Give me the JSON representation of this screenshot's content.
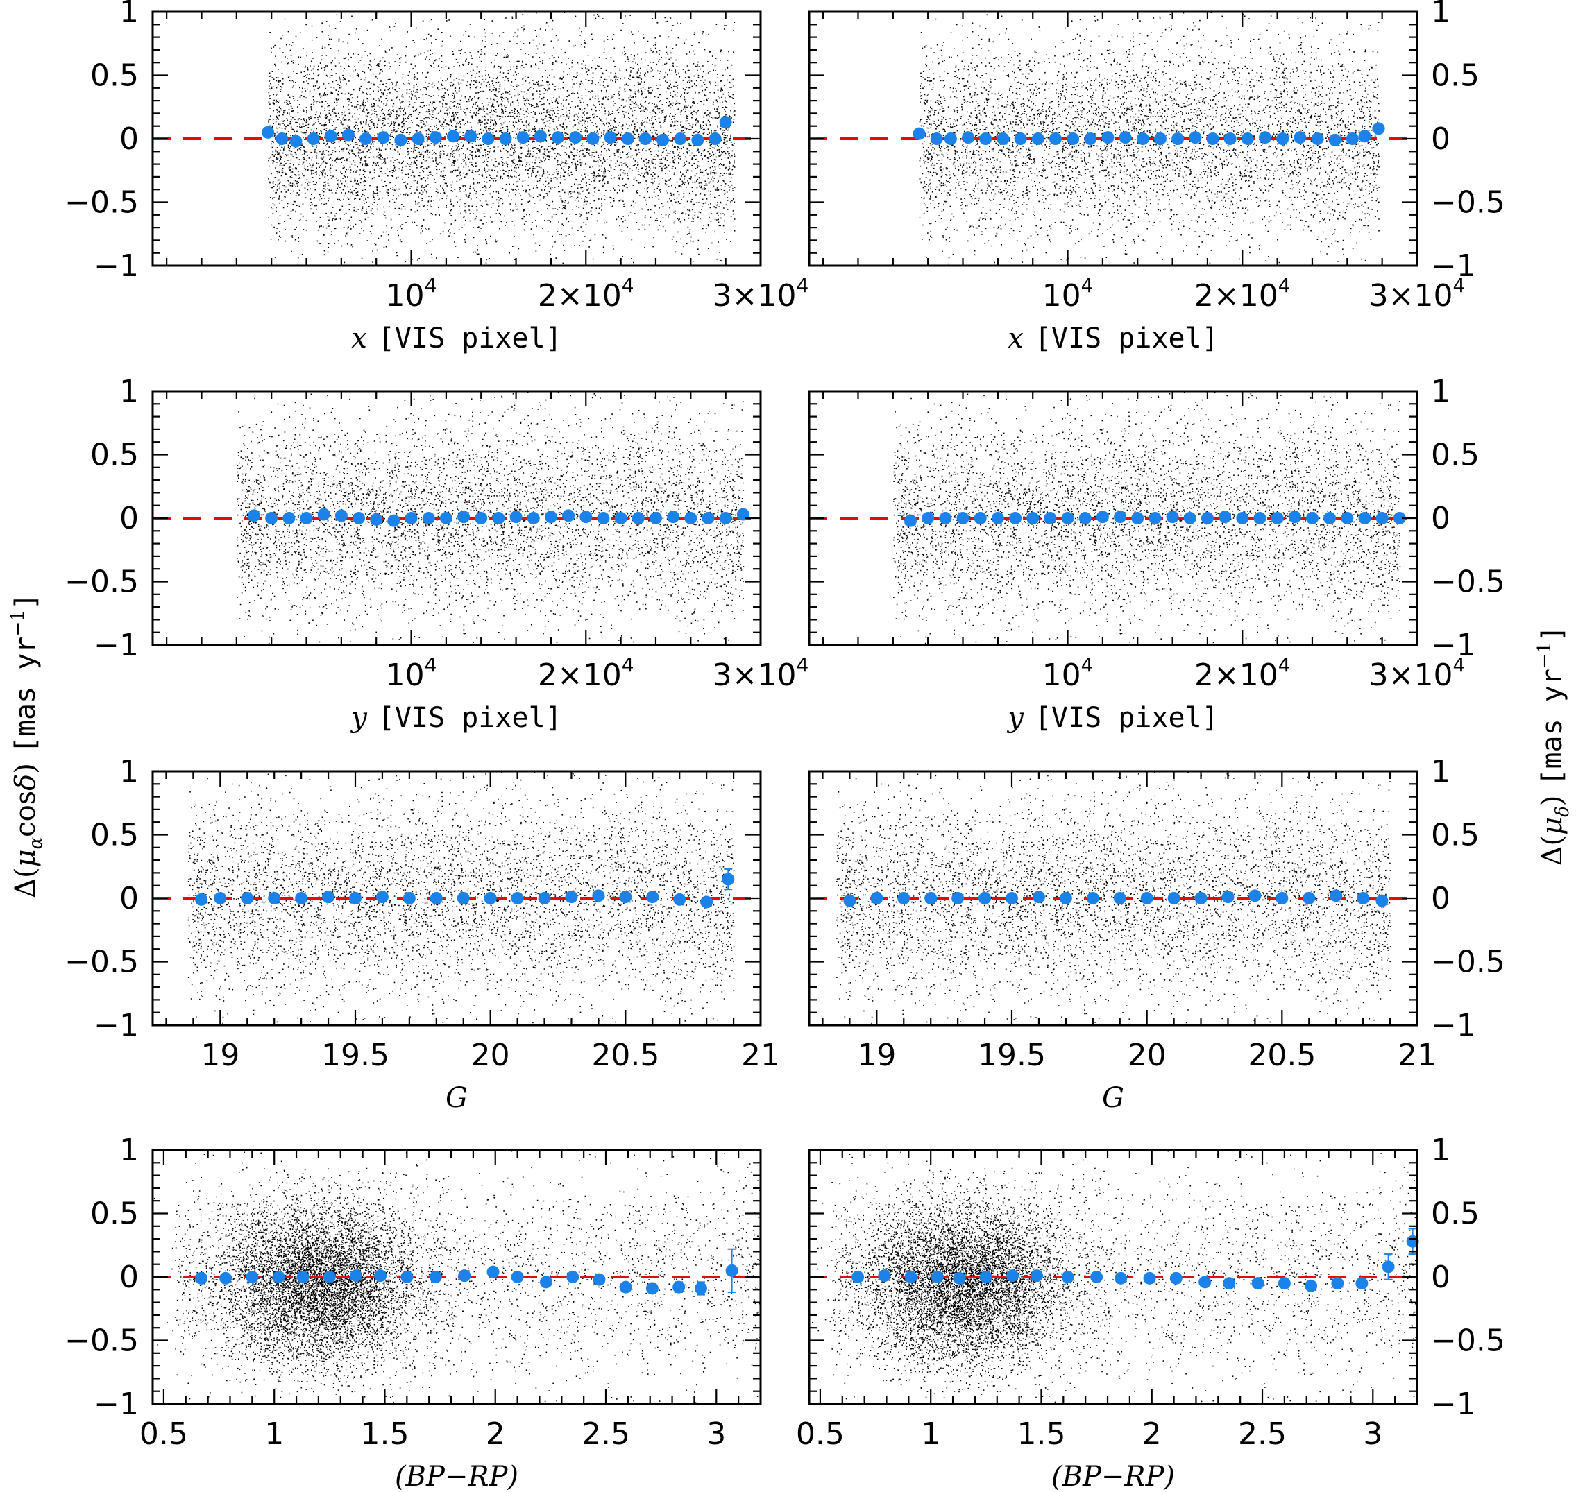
{
  "figure": {
    "ylabel_left": {
      "delta": "Δ(",
      "mu": "μ",
      "sub": "α",
      "cos": "cos",
      "delta_sym": "δ",
      "close": ")",
      "unit": "[mas yr",
      "exp": "−1",
      "unit_close": "]"
    },
    "ylabel_right": {
      "delta": "Δ(",
      "mu": "μ",
      "sub": "δ",
      "close": ")",
      "unit": "[mas yr",
      "exp": "−1",
      "unit_close": "]"
    },
    "colors": {
      "stars": "#000000",
      "bins": "#1a82e8",
      "zero_line": "#e30b0b"
    }
  },
  "chart_data": [
    {
      "type": "scatter",
      "panel": "row1-left",
      "x_quantity": "x",
      "xlabel_var": "x",
      "xlabel_unit": "[VIS pixel]",
      "x_ticks": [
        "10",
        "2×10",
        "3×10"
      ],
      "x_tick_exponent": "4",
      "x_tick_values": [
        10000,
        20000,
        30000
      ],
      "xlim": [
        -4800,
        30000
      ],
      "ylim": [
        -1,
        1
      ],
      "y_ticks": [
        "1",
        "0.5",
        "0",
        "−0.5",
        "−1"
      ],
      "ytick_side": "left",
      "x_range_points": [
        1800,
        28500
      ],
      "binned_x": [
        1800,
        2600,
        3400,
        4400,
        5400,
        6400,
        7400,
        8400,
        9400,
        10400,
        11400,
        12400,
        13400,
        14400,
        15400,
        16400,
        17400,
        18400,
        19400,
        20400,
        21400,
        22400,
        23400,
        24400,
        25400,
        26400,
        27400,
        28000
      ],
      "binned_y": [
        0.05,
        0.0,
        -0.02,
        0.0,
        0.02,
        0.03,
        0.0,
        0.01,
        -0.01,
        0.0,
        0.01,
        0.02,
        0.02,
        0.0,
        0.0,
        0.01,
        0.02,
        0.01,
        0.01,
        0.0,
        0.01,
        0.0,
        0.0,
        -0.01,
        0.0,
        -0.01,
        0.0,
        0.13
      ],
      "binned_err": [
        0.015,
        0.015,
        0.015,
        0.015,
        0.015,
        0.015,
        0.015,
        0.015,
        0.015,
        0.015,
        0.015,
        0.015,
        0.015,
        0.015,
        0.015,
        0.015,
        0.015,
        0.015,
        0.015,
        0.015,
        0.015,
        0.015,
        0.015,
        0.015,
        0.015,
        0.015,
        0.015,
        0.04
      ]
    },
    {
      "type": "scatter",
      "panel": "row1-right",
      "x_quantity": "x",
      "xlabel_var": "x",
      "xlabel_unit": "[VIS pixel]",
      "x_ticks": [
        "10",
        "2×10",
        "3×10"
      ],
      "x_tick_exponent": "4",
      "x_tick_values": [
        10000,
        20000,
        30000
      ],
      "xlim": [
        -4800,
        30000
      ],
      "ylim": [
        -1,
        1
      ],
      "y_ticks": [
        "1",
        "0.5",
        "0",
        "−0.5",
        "−1"
      ],
      "ytick_side": "right",
      "x_range_points": [
        1500,
        27800
      ],
      "binned_x": [
        1500,
        2500,
        3300,
        4300,
        5300,
        6300,
        7300,
        8300,
        9300,
        10300,
        11300,
        12300,
        13300,
        14300,
        15300,
        16300,
        17300,
        18300,
        19300,
        20300,
        21300,
        22300,
        23300,
        24300,
        25300,
        26300,
        27000,
        27800
      ],
      "binned_y": [
        0.04,
        0.0,
        0.0,
        0.01,
        0.0,
        0.0,
        0.0,
        0.0,
        0.0,
        0.0,
        0.0,
        0.01,
        0.01,
        0.0,
        0.0,
        0.0,
        0.01,
        0.0,
        0.0,
        0.0,
        0.01,
        0.0,
        0.01,
        0.0,
        -0.01,
        0.0,
        0.02,
        0.08
      ],
      "binned_err": [
        0.015,
        0.015,
        0.015,
        0.015,
        0.015,
        0.015,
        0.015,
        0.015,
        0.015,
        0.015,
        0.015,
        0.015,
        0.015,
        0.015,
        0.015,
        0.015,
        0.015,
        0.015,
        0.015,
        0.015,
        0.015,
        0.015,
        0.015,
        0.015,
        0.015,
        0.015,
        0.015,
        0.03
      ]
    },
    {
      "type": "scatter",
      "panel": "row2-left",
      "x_quantity": "y",
      "xlabel_var": "y",
      "xlabel_unit": "[VIS pixel]",
      "x_ticks": [
        "10",
        "2×10",
        "3×10"
      ],
      "x_tick_exponent": "4",
      "x_tick_values": [
        10000,
        20000,
        30000
      ],
      "xlim": [
        -4800,
        30000
      ],
      "ylim": [
        -1,
        1
      ],
      "y_ticks": [
        "1",
        "0.5",
        "0",
        "−0.5",
        "−1"
      ],
      "ytick_side": "left",
      "x_range_points": [
        0,
        29000
      ],
      "binned_x": [
        1000,
        2000,
        3000,
        4000,
        5000,
        6000,
        7000,
        8000,
        9000,
        10000,
        11000,
        12000,
        13000,
        14000,
        15000,
        16000,
        17000,
        18000,
        19000,
        20000,
        21000,
        22000,
        23000,
        24000,
        25000,
        26000,
        27000,
        28000,
        29000
      ],
      "binned_y": [
        0.02,
        0.0,
        0.0,
        0.0,
        0.03,
        0.02,
        0.0,
        -0.01,
        -0.02,
        0.0,
        0.0,
        0.0,
        0.01,
        0.0,
        0.0,
        0.01,
        0.0,
        0.01,
        0.02,
        0.01,
        0.0,
        0.0,
        0.0,
        0.0,
        0.01,
        0.0,
        0.0,
        0.0,
        0.03
      ],
      "binned_err": [
        0.015,
        0.015,
        0.015,
        0.015,
        0.015,
        0.015,
        0.015,
        0.015,
        0.015,
        0.015,
        0.015,
        0.015,
        0.015,
        0.015,
        0.015,
        0.015,
        0.015,
        0.015,
        0.015,
        0.015,
        0.015,
        0.015,
        0.015,
        0.015,
        0.015,
        0.015,
        0.015,
        0.015,
        0.015
      ]
    },
    {
      "type": "scatter",
      "panel": "row2-right",
      "x_quantity": "y",
      "xlabel_var": "y",
      "xlabel_unit": "[VIS pixel]",
      "x_ticks": [
        "10",
        "2×10",
        "3×10"
      ],
      "x_tick_exponent": "4",
      "x_tick_values": [
        10000,
        20000,
        30000
      ],
      "xlim": [
        -4800,
        30000
      ],
      "ylim": [
        -1,
        1
      ],
      "y_ticks": [
        "1",
        "0.5",
        "0",
        "−0.5",
        "−1"
      ],
      "ytick_side": "right",
      "x_range_points": [
        0,
        29000
      ],
      "binned_x": [
        1000,
        2000,
        3000,
        4000,
        5000,
        6000,
        7000,
        8000,
        9000,
        10000,
        11000,
        12000,
        13000,
        14000,
        15000,
        16000,
        17000,
        18000,
        19000,
        20000,
        21000,
        22000,
        23000,
        24000,
        25000,
        26000,
        27000,
        28000,
        29000
      ],
      "binned_y": [
        -0.02,
        0.0,
        0.0,
        0.0,
        0.0,
        0.0,
        0.0,
        0.0,
        0.0,
        0.0,
        0.0,
        0.01,
        0.01,
        0.0,
        0.0,
        0.01,
        0.0,
        0.0,
        0.01,
        0.0,
        0.0,
        0.0,
        0.01,
        0.0,
        0.0,
        0.0,
        0.0,
        0.0,
        0.0
      ],
      "binned_err": [
        0.015,
        0.015,
        0.015,
        0.015,
        0.015,
        0.015,
        0.015,
        0.015,
        0.015,
        0.015,
        0.015,
        0.015,
        0.015,
        0.015,
        0.015,
        0.015,
        0.015,
        0.015,
        0.015,
        0.015,
        0.015,
        0.015,
        0.015,
        0.015,
        0.015,
        0.015,
        0.015,
        0.015,
        0.015
      ]
    },
    {
      "type": "scatter",
      "panel": "row3-left",
      "x_quantity": "G",
      "xlabel_var": "G",
      "xlabel_unit": "",
      "x_ticks": [
        "19",
        "19.5",
        "20",
        "20.5",
        "21"
      ],
      "x_tick_exponent": "",
      "x_tick_values": [
        19,
        19.5,
        20,
        20.5,
        21
      ],
      "xlim": [
        18.75,
        21.0
      ],
      "ylim": [
        -1,
        1
      ],
      "y_ticks": [
        "1",
        "0.5",
        "0",
        "−0.5",
        "−1"
      ],
      "ytick_side": "left",
      "x_range_points": [
        18.88,
        20.9
      ],
      "binned_x": [
        18.93,
        19.0,
        19.1,
        19.2,
        19.3,
        19.4,
        19.5,
        19.6,
        19.7,
        19.8,
        19.9,
        20.0,
        20.1,
        20.2,
        20.3,
        20.4,
        20.5,
        20.6,
        20.7,
        20.8,
        20.88
      ],
      "binned_y": [
        -0.01,
        0.0,
        0.0,
        0.0,
        0.0,
        0.01,
        0.0,
        0.01,
        0.0,
        0.0,
        0.0,
        0.0,
        0.0,
        0.0,
        0.01,
        0.02,
        0.01,
        0.01,
        -0.01,
        -0.03,
        0.15
      ],
      "binned_err": [
        0.015,
        0.015,
        0.015,
        0.015,
        0.015,
        0.015,
        0.015,
        0.015,
        0.015,
        0.015,
        0.015,
        0.015,
        0.015,
        0.015,
        0.015,
        0.015,
        0.015,
        0.015,
        0.015,
        0.02,
        0.08
      ]
    },
    {
      "type": "scatter",
      "panel": "row3-right",
      "x_quantity": "G",
      "xlabel_var": "G",
      "xlabel_unit": "",
      "x_ticks": [
        "19",
        "19.5",
        "20",
        "20.5",
        "21"
      ],
      "x_tick_exponent": "",
      "x_tick_values": [
        19,
        19.5,
        20,
        20.5,
        21
      ],
      "xlim": [
        18.75,
        21.0
      ],
      "ylim": [
        -1,
        1
      ],
      "y_ticks": [
        "1",
        "0.5",
        "0",
        "−0.5",
        "−1"
      ],
      "ytick_side": "right",
      "x_range_points": [
        18.85,
        20.9
      ],
      "binned_x": [
        18.9,
        19.0,
        19.1,
        19.2,
        19.3,
        19.4,
        19.5,
        19.6,
        19.7,
        19.8,
        19.9,
        20.0,
        20.1,
        20.2,
        20.3,
        20.4,
        20.5,
        20.6,
        20.7,
        20.8,
        20.87
      ],
      "binned_y": [
        -0.02,
        0.0,
        0.0,
        0.0,
        0.0,
        0.0,
        0.0,
        0.01,
        0.0,
        0.0,
        0.0,
        0.0,
        0.0,
        0.0,
        0.01,
        0.02,
        0.0,
        0.0,
        0.02,
        0.0,
        -0.02
      ],
      "binned_err": [
        0.015,
        0.015,
        0.015,
        0.015,
        0.015,
        0.015,
        0.015,
        0.015,
        0.015,
        0.015,
        0.015,
        0.015,
        0.015,
        0.015,
        0.015,
        0.015,
        0.015,
        0.015,
        0.015,
        0.015,
        0.02
      ]
    },
    {
      "type": "scatter",
      "panel": "row4-left",
      "x_quantity": "BP-RP",
      "xlabel_var": "(BP−RP)",
      "xlabel_unit": "",
      "x_ticks": [
        "0.5",
        "1",
        "1.5",
        "2",
        "2.5",
        "3"
      ],
      "x_tick_exponent": "",
      "x_tick_values": [
        0.5,
        1,
        1.5,
        2,
        2.5,
        3
      ],
      "xlim": [
        0.45,
        3.2
      ],
      "ylim": [
        -1,
        1
      ],
      "y_ticks": [
        "1",
        "0.5",
        "0",
        "−0.5",
        "−1"
      ],
      "ytick_side": "left",
      "x_range_points": [
        0.55,
        3.2
      ],
      "concentration_center": [
        1.2,
        -0.05
      ],
      "binned_x": [
        0.67,
        0.78,
        0.9,
        1.02,
        1.13,
        1.25,
        1.37,
        1.48,
        1.6,
        1.73,
        1.86,
        1.99,
        2.1,
        2.23,
        2.35,
        2.47,
        2.59,
        2.71,
        2.83,
        2.93,
        3.07
      ],
      "binned_y": [
        -0.01,
        -0.01,
        0.0,
        0.0,
        0.0,
        0.0,
        0.01,
        0.01,
        0.0,
        0.0,
        0.01,
        0.04,
        0.0,
        -0.04,
        0.0,
        -0.02,
        -0.08,
        -0.09,
        -0.08,
        -0.09,
        0.05
      ],
      "binned_err": [
        0.015,
        0.015,
        0.015,
        0.015,
        0.015,
        0.015,
        0.015,
        0.015,
        0.015,
        0.015,
        0.015,
        0.02,
        0.02,
        0.02,
        0.025,
        0.025,
        0.03,
        0.03,
        0.04,
        0.05,
        0.17
      ]
    },
    {
      "type": "scatter",
      "panel": "row4-right",
      "x_quantity": "BP-RP",
      "xlabel_var": "(BP−RP)",
      "xlabel_unit": "",
      "x_ticks": [
        "0.5",
        "1",
        "1.5",
        "2",
        "2.5",
        "3"
      ],
      "x_tick_exponent": "",
      "x_tick_values": [
        0.5,
        1,
        1.5,
        2,
        2.5,
        3
      ],
      "xlim": [
        0.45,
        3.2
      ],
      "ylim": [
        -1,
        1
      ],
      "y_ticks": [
        "1",
        "0.5",
        "0",
        "−0.5",
        "−1"
      ],
      "ytick_side": "right",
      "x_range_points": [
        0.55,
        3.2
      ],
      "concentration_center": [
        1.15,
        -0.05
      ],
      "binned_x": [
        0.67,
        0.79,
        0.91,
        1.03,
        1.13,
        1.25,
        1.37,
        1.48,
        1.62,
        1.75,
        1.86,
        1.99,
        2.11,
        2.24,
        2.35,
        2.48,
        2.6,
        2.72,
        2.84,
        2.95,
        3.07,
        3.18
      ],
      "binned_y": [
        0.0,
        0.01,
        0.0,
        0.0,
        -0.01,
        0.0,
        0.01,
        0.01,
        0.0,
        0.0,
        -0.01,
        -0.01,
        -0.01,
        -0.04,
        -0.05,
        -0.05,
        -0.05,
        -0.07,
        -0.05,
        -0.05,
        0.08,
        0.28
      ],
      "binned_err": [
        0.015,
        0.015,
        0.015,
        0.015,
        0.015,
        0.015,
        0.015,
        0.015,
        0.015,
        0.015,
        0.015,
        0.015,
        0.02,
        0.02,
        0.02,
        0.02,
        0.025,
        0.025,
        0.03,
        0.03,
        0.1,
        0.1
      ]
    }
  ]
}
